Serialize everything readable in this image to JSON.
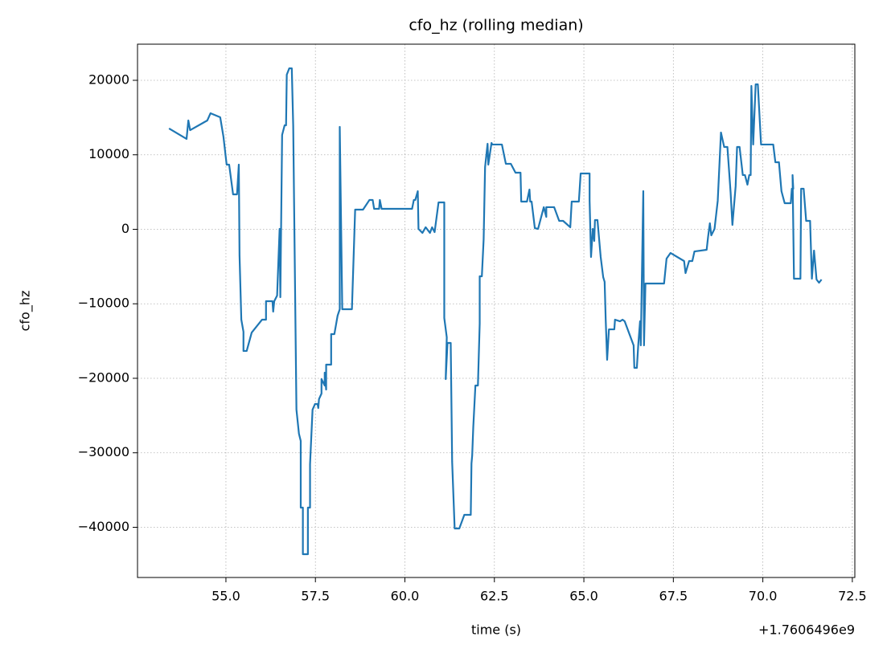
{
  "chart_data": {
    "type": "line",
    "title": "cfo_hz (rolling median)",
    "x_label": "time (s)",
    "y_label": "cfo_hz",
    "x_offset_text": "+1.7606496e9",
    "x": [
      53.41,
      53.9,
      53.95,
      54.0,
      54.48,
      54.57,
      54.84,
      54.93,
      55.02,
      55.09,
      55.2,
      55.31,
      55.36,
      55.38,
      55.43,
      55.49,
      55.49,
      55.58,
      55.72,
      56.01,
      56.12,
      56.12,
      56.3,
      56.32,
      56.35,
      56.43,
      56.5,
      56.52,
      56.57,
      56.64,
      56.68,
      56.7,
      56.77,
      56.84,
      56.88,
      56.97,
      57.04,
      57.09,
      57.09,
      57.15,
      57.15,
      57.29,
      57.29,
      57.35,
      57.35,
      57.42,
      57.49,
      57.56,
      57.58,
      57.6,
      57.67,
      57.67,
      57.76,
      57.76,
      57.8,
      57.8,
      57.94,
      57.94,
      58.03,
      58.12,
      58.18,
      58.18,
      58.25,
      58.52,
      58.61,
      58.83,
      59.01,
      59.1,
      59.14,
      59.28,
      59.3,
      59.35,
      60.2,
      60.25,
      60.29,
      60.36,
      60.38,
      60.49,
      60.58,
      60.7,
      60.76,
      60.83,
      60.94,
      61.1,
      61.1,
      61.17,
      61.14,
      61.19,
      61.28,
      61.32,
      61.39,
      61.52,
      61.66,
      61.84,
      61.86,
      61.88,
      61.91,
      61.97,
      62.04,
      62.09,
      62.09,
      62.15,
      62.2,
      62.24,
      62.31,
      62.33,
      62.42,
      62.44,
      62.71,
      62.82,
      62.96,
      63.09,
      63.23,
      63.25,
      63.41,
      63.48,
      63.5,
      63.54,
      63.63,
      63.72,
      63.88,
      63.95,
      63.95,
      64.17,
      64.31,
      64.42,
      64.62,
      64.66,
      64.86,
      64.91,
      65.16,
      65.16,
      65.2,
      65.25,
      65.29,
      65.31,
      65.38,
      65.47,
      65.54,
      65.58,
      65.61,
      65.65,
      65.7,
      65.85,
      65.87,
      66.01,
      66.08,
      66.14,
      66.39,
      66.41,
      66.48,
      66.52,
      66.57,
      66.59,
      66.66,
      66.68,
      66.72,
      66.82,
      67.24,
      67.31,
      67.42,
      67.8,
      67.84,
      67.94,
      68.03,
      68.09,
      68.43,
      68.47,
      68.52,
      68.56,
      68.65,
      68.74,
      68.83,
      68.92,
      69.01,
      69.1,
      69.15,
      69.24,
      69.28,
      69.35,
      69.44,
      69.5,
      69.57,
      69.62,
      69.66,
      69.68,
      69.73,
      69.8,
      69.86,
      69.95,
      70.29,
      70.35,
      70.45,
      70.52,
      70.61,
      70.78,
      70.81,
      70.85,
      70.83,
      70.87,
      71.05,
      71.07,
      71.14,
      71.21,
      71.32,
      71.37,
      71.43,
      71.5,
      71.57,
      71.64
    ],
    "series": [
      {
        "name": "cfo_hz",
        "color": "#1f77b4",
        "values": [
          13530,
          12130,
          14610,
          13310,
          14610,
          15580,
          15040,
          12450,
          8680,
          8680,
          4690,
          4690,
          8680,
          -3500,
          -12130,
          -13750,
          -16330,
          -16330,
          -13860,
          -12130,
          -12130,
          -9650,
          -9650,
          -11050,
          -9650,
          -8900,
          50,
          -9110,
          12670,
          13960,
          13960,
          20750,
          21610,
          21610,
          13850,
          -24210,
          -27440,
          -28410,
          -37360,
          -37360,
          -43610,
          -43610,
          -37360,
          -37360,
          -31540,
          -24210,
          -23450,
          -23450,
          -23990,
          -22800,
          -22050,
          -20110,
          -20970,
          -19240,
          -21510,
          -18170,
          -18170,
          -14070,
          -14070,
          -11590,
          -10730,
          13750,
          -10730,
          -10730,
          2640,
          2640,
          3940,
          3940,
          2750,
          2750,
          3940,
          2750,
          2750,
          3940,
          3940,
          5120,
          50,
          -480,
          270,
          -480,
          270,
          -380,
          3610,
          3610,
          -11910,
          -14500,
          -20110,
          -15260,
          -15260,
          -31210,
          -40160,
          -40160,
          -38330,
          -38330,
          -31430,
          -30350,
          -26580,
          -20970,
          -20970,
          -12670,
          -6310,
          -6310,
          -1350,
          8360,
          11480,
          8680,
          11590,
          11380,
          11380,
          8790,
          8790,
          7600,
          7600,
          3720,
          3720,
          5340,
          3720,
          3720,
          160,
          50,
          2970,
          1670,
          2970,
          2970,
          1130,
          1130,
          270,
          3720,
          3720,
          7490,
          7490,
          3830,
          -3720,
          50,
          -1560,
          1240,
          1240,
          -3720,
          -6420,
          -7060,
          -12130,
          -17520,
          -13430,
          -13430,
          -12130,
          -12350,
          -12130,
          -12350,
          -15580,
          -18600,
          -18600,
          -15470,
          -12350,
          -15580,
          5120,
          -15580,
          -7280,
          -7280,
          -7280,
          -3940,
          -3180,
          -4260,
          -5880,
          -4260,
          -4260,
          -2970,
          -2750,
          -1020,
          810,
          -810,
          50,
          3830,
          12990,
          11050,
          11050,
          4910,
          590,
          5770,
          11050,
          11050,
          7280,
          7280,
          5990,
          7280,
          7280,
          19240,
          11380,
          19460,
          19460,
          11380,
          11380,
          9000,
          9000,
          5120,
          3500,
          3500,
          5450,
          5450,
          7280,
          -6630,
          -6630,
          5450,
          5450,
          1130,
          1130,
          -6630,
          -2860,
          -6740,
          -7170,
          -6740
        ]
      }
    ],
    "xlim": [
      52.53,
      72.57
    ],
    "ylim": [
      -46740,
      24850
    ],
    "xticks": [
      {
        "value": 55,
        "label": "55.0"
      },
      {
        "value": 57.5,
        "label": "57.5"
      },
      {
        "value": 60,
        "label": "60.0"
      },
      {
        "value": 62.5,
        "label": "62.5"
      },
      {
        "value": 65,
        "label": "65.0"
      },
      {
        "value": 67.5,
        "label": "67.5"
      },
      {
        "value": 70,
        "label": "70.0"
      },
      {
        "value": 72.5,
        "label": "72.5"
      }
    ],
    "yticks": [
      {
        "value": -40000,
        "label": "−40000"
      },
      {
        "value": -30000,
        "label": "−30000"
      },
      {
        "value": -20000,
        "label": "−20000"
      },
      {
        "value": -10000,
        "label": "−10000"
      },
      0,
      10000,
      20000
    ],
    "grid": true
  }
}
